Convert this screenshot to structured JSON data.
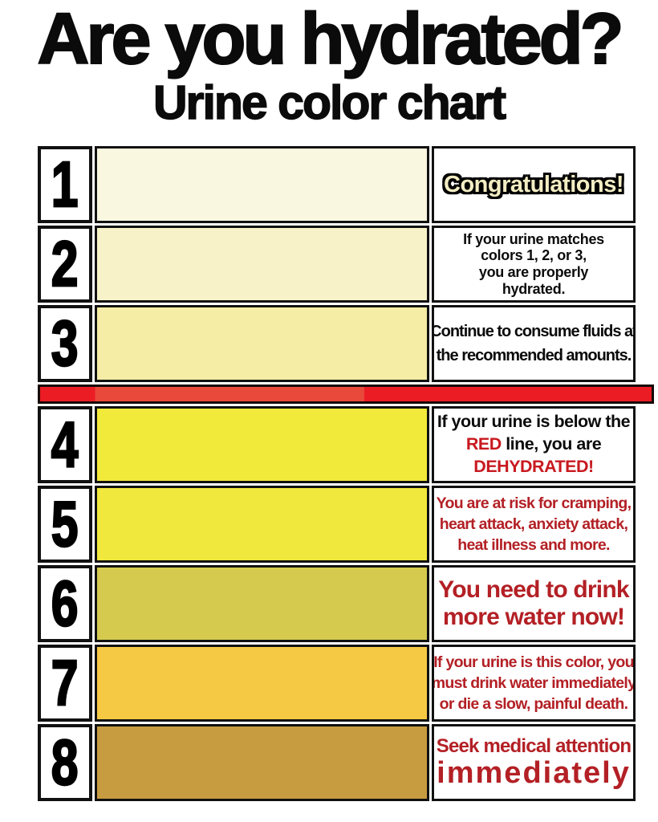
{
  "title": "Are you hydrated?",
  "subtitle": "Urine color chart",
  "red_divider": {
    "after_row": 3
  },
  "colors": {
    "red_band": "#EC1C24",
    "red_band_middle": "#E8493B",
    "dark_red_text": "#B32025",
    "accent_red_text": "#C8191F",
    "congrats_cream": "#F3EDC3",
    "border_black": "#111111"
  },
  "rows": [
    {
      "number": "1",
      "swatch_color": "#FAF7E0",
      "lines": [
        {
          "cls": "congrats",
          "segments": [
            {
              "text": "Congratulations!"
            }
          ]
        }
      ]
    },
    {
      "number": "2",
      "swatch_color": "#F8F2C9",
      "lines": [
        {
          "cls": "black-sm",
          "segments": [
            {
              "text": "If your urine matches"
            }
          ]
        },
        {
          "cls": "black-sm",
          "segments": [
            {
              "text": "colors 1, 2, or 3,"
            }
          ]
        },
        {
          "cls": "black-sm",
          "segments": [
            {
              "text": "you are properly"
            }
          ]
        },
        {
          "cls": "black-sm",
          "segments": [
            {
              "text": "hydrated."
            }
          ]
        }
      ]
    },
    {
      "number": "3",
      "swatch_color": "#F5ECA5",
      "lines": [
        {
          "cls": "black-md",
          "segments": [
            {
              "text": "Continue to consume fluids at"
            }
          ]
        },
        {
          "cls": "black-md",
          "segments": [
            {
              "text": "the recommended amounts."
            }
          ]
        }
      ]
    },
    {
      "number": "4",
      "swatch_color": "#F2EA3A",
      "lines": [
        {
          "cls": "black-lg",
          "segments": [
            {
              "text": "If your urine is below the"
            }
          ]
        },
        {
          "cls": "black-lg",
          "segments": [
            {
              "text": "RED",
              "accent": true
            },
            {
              "text": " line, you are"
            }
          ]
        },
        {
          "cls": "black-lg",
          "segments": [
            {
              "text": "DEHYDRATED!",
              "accent": true
            }
          ]
        }
      ]
    },
    {
      "number": "5",
      "swatch_color": "#F0E83C",
      "lines": [
        {
          "cls": "red-md",
          "segments": [
            {
              "text": "You are at risk for cramping,"
            }
          ]
        },
        {
          "cls": "red-md",
          "segments": [
            {
              "text": "heart attack, anxiety attack,"
            }
          ]
        },
        {
          "cls": "red-md",
          "segments": [
            {
              "text": "heat illness and more."
            }
          ]
        }
      ]
    },
    {
      "number": "6",
      "swatch_color": "#D5CA4E",
      "lines": [
        {
          "cls": "red-xl",
          "segments": [
            {
              "text": "You need to drink"
            }
          ]
        },
        {
          "cls": "red-xl",
          "segments": [
            {
              "text": "more water now!"
            }
          ]
        }
      ]
    },
    {
      "number": "7",
      "swatch_color": "#F6C945",
      "lines": [
        {
          "cls": "red-md",
          "segments": [
            {
              "text": "If your urine is this color, you"
            }
          ]
        },
        {
          "cls": "red-md",
          "segments": [
            {
              "text": "must drink water immediately"
            }
          ]
        },
        {
          "cls": "red-md",
          "segments": [
            {
              "text": "or die a slow, painful death."
            }
          ]
        }
      ]
    },
    {
      "number": "8",
      "swatch_color": "#C79B40",
      "lines": [
        {
          "cls": "red-lg",
          "segments": [
            {
              "text": "Seek medical attention"
            }
          ]
        },
        {
          "cls": "red-xxl",
          "segments": [
            {
              "text": "immediately"
            }
          ]
        }
      ]
    }
  ],
  "chart_data": {
    "type": "table",
    "title": "Are you hydrated? Urine color chart",
    "columns": [
      "level",
      "urine_color_hex",
      "message"
    ],
    "rows": [
      [
        1,
        "#FAF7E0",
        "Congratulations!"
      ],
      [
        2,
        "#F8F2C9",
        "If your urine matches colors 1, 2, or 3, you are properly hydrated."
      ],
      [
        3,
        "#F5ECA5",
        "Continue to consume fluids at the recommended amounts."
      ],
      [
        4,
        "#F2EA3A",
        "If your urine is below the RED line, you are DEHYDRATED!"
      ],
      [
        5,
        "#F0E83C",
        "You are at risk for cramping, heart attack, anxiety attack, heat illness and more."
      ],
      [
        6,
        "#D5CA4E",
        "You need to drink more water now!"
      ],
      [
        7,
        "#F6C945",
        "If your urine is this color, you must drink water immediately or die a slow, painful death."
      ],
      [
        8,
        "#C79B40",
        "Seek medical attention immediately"
      ]
    ],
    "annotations": [
      "Red horizontal divider line between level 3 and level 4 (hydrated vs dehydrated)"
    ]
  }
}
